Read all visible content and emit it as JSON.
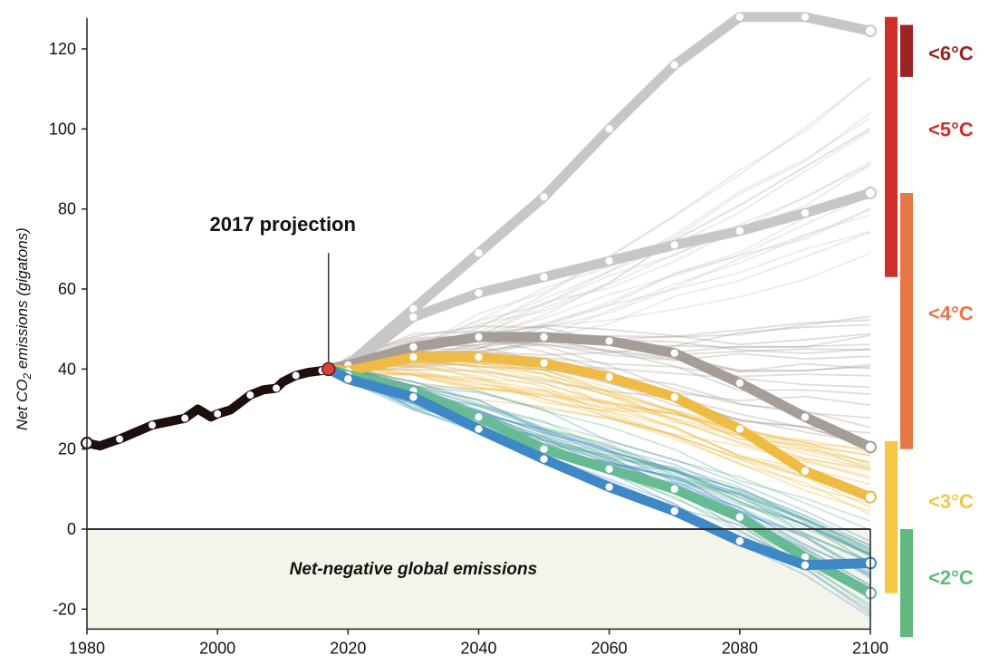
{
  "chart_data": {
    "type": "line",
    "title": "",
    "xlabel": "",
    "ylabel": "Net CO2 emissions (gigatons)",
    "ylabel_parts": [
      "Net CO",
      "2",
      " emissions (gigatons)"
    ],
    "xlim": [
      1980,
      2100
    ],
    "ylim": [
      -25,
      125
    ],
    "x_ticks": [
      1980,
      2000,
      2020,
      2040,
      2060,
      2080,
      2100
    ],
    "y_ticks": [
      -20,
      0,
      20,
      40,
      60,
      80,
      100,
      120
    ],
    "grid": false,
    "annotation": {
      "text": "2017 projection",
      "x": 2017,
      "y": 40
    },
    "region_label": "Net-negative global emissions",
    "colors": {
      "historical": "#1e0f0f",
      "projection_point": "#d8423a",
      "grey": "#c7c7c7",
      "brown": "#a69e96",
      "yellow": "#eebb45",
      "green": "#67bb92",
      "blue": "#3f88c8",
      "negative_fill": "#f3f5ea",
      "zero_line": "#333333"
    },
    "historical": {
      "x": [
        1980,
        1982,
        1985,
        1990,
        1995,
        1997,
        1999,
        2000,
        2002,
        2005,
        2007,
        2009,
        2010,
        2012,
        2014,
        2016
      ],
      "y": [
        21.5,
        20.8,
        22.5,
        26,
        27.7,
        30,
        28,
        28.8,
        29.8,
        33.5,
        34.8,
        35.2,
        36.8,
        38.4,
        39.2,
        39.6
      ]
    },
    "series": [
      {
        "x": [
          2017,
          2020,
          2030,
          2040,
          2050,
          2060,
          2070,
          2080,
          2090,
          2100
        ],
        "y": [
          40,
          41,
          55,
          69,
          83,
          100,
          116,
          128,
          128,
          124.5
        ],
        "color": "grey",
        "lw": 11
      },
      {
        "x": [
          2017,
          2020,
          2030,
          2040,
          2050,
          2060,
          2070,
          2080,
          2090,
          2100
        ],
        "y": [
          40,
          40.5,
          53,
          59,
          63,
          67,
          71,
          74.5,
          79,
          84
        ],
        "color": "grey",
        "lw": 11
      },
      {
        "x": [
          2017,
          2020,
          2030,
          2040,
          2050,
          2060,
          2070,
          2080,
          2090,
          2100
        ],
        "y": [
          40,
          41,
          45.5,
          48,
          48,
          47,
          44,
          36.5,
          28,
          20.5
        ],
        "color": "brown",
        "lw": 11
      },
      {
        "x": [
          2017,
          2020,
          2030,
          2040,
          2050,
          2060,
          2070,
          2080,
          2090,
          2100
        ],
        "y": [
          40,
          39.5,
          43,
          43,
          41.5,
          38,
          33,
          25,
          14.5,
          8
        ],
        "color": "yellow",
        "lw": 11
      },
      {
        "x": [
          2017,
          2020,
          2030,
          2040,
          2050,
          2060,
          2070,
          2080,
          2090,
          2100
        ],
        "y": [
          40,
          38.5,
          34.5,
          28,
          20,
          15,
          10,
          3,
          -7,
          -16
        ],
        "color": "green",
        "lw": 11
      },
      {
        "x": [
          2017,
          2020,
          2030,
          2040,
          2050,
          2060,
          2070,
          2080,
          2090,
          2100
        ],
        "y": [
          40,
          37.5,
          33,
          25,
          17.5,
          10.5,
          4.5,
          -3,
          -9,
          -8.5
        ],
        "color": "blue",
        "lw": 11
      }
    ],
    "bands": [
      {
        "label": "<6°C",
        "range": [
          113,
          126
        ],
        "color": "#9b2424",
        "label_y": 119
      },
      {
        "label": "<5°C",
        "range": [
          63,
          128
        ],
        "color": "#cf2f2b",
        "label_y": 100
      },
      {
        "label": "<4°C",
        "range": [
          20,
          84
        ],
        "color": "#e87746",
        "label_y": 54
      },
      {
        "label": "<3°C",
        "range": [
          -16,
          22
        ],
        "color": "#f6c744",
        "label_y": 7
      },
      {
        "label": "<2°C",
        "range": [
          -27,
          0
        ],
        "color": "#63b880",
        "label_y": -12
      }
    ]
  }
}
